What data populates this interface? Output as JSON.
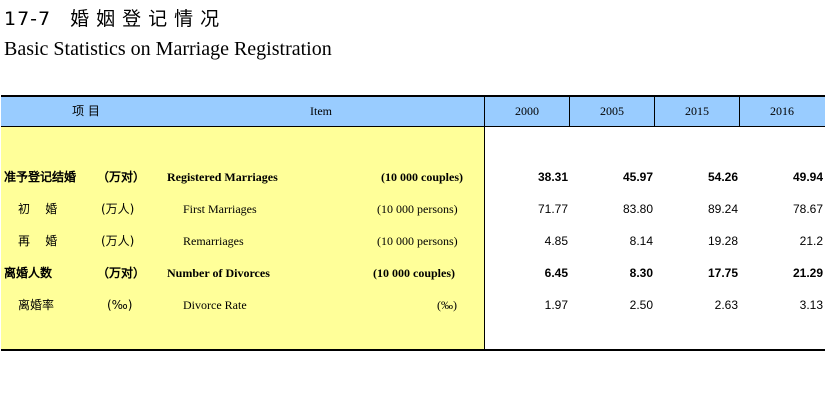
{
  "title": {
    "number": "17-7",
    "cn": "婚姻登记情况",
    "en": "Basic Statistics on Marriage Registration"
  },
  "header": {
    "item_cn": "项  目",
    "item_en": "Item",
    "years": [
      "2000",
      "2005",
      "2015",
      "2016"
    ]
  },
  "rows": [
    {
      "cn": "准予登记结婚",
      "unit_cn": "（万对）",
      "en": "Registered Marriages",
      "unit_en": "(10 000 couples)",
      "bold": true,
      "values": [
        "38.31",
        "45.97",
        "54.26",
        "49.94"
      ]
    },
    {
      "cn": "初    婚",
      "unit_cn": "(万人)",
      "en": "First Marriages",
      "unit_en": "(10 000 persons)",
      "bold": false,
      "values": [
        "71.77",
        "83.80",
        "89.24",
        "78.67"
      ]
    },
    {
      "cn": "再    婚",
      "unit_cn": "(万人)",
      "en": "Remarriages",
      "unit_en": "(10 000 persons)",
      "bold": false,
      "values": [
        "4.85",
        "8.14",
        "19.28",
        "21.2"
      ]
    },
    {
      "cn": "离婚人数",
      "unit_cn": "（万对）",
      "en": "Number of Divorces",
      "unit_en": "(10 000 couples)",
      "bold": true,
      "values": [
        "6.45",
        "8.30",
        "17.75",
        "21.29"
      ]
    },
    {
      "cn": "离婚率",
      "unit_cn": "(‰)",
      "en": "Divorce Rate",
      "unit_en": "(‰)",
      "bold": false,
      "values": [
        "1.97",
        "2.50",
        "2.63",
        "3.13"
      ]
    }
  ],
  "colors": {
    "header_bg": "#99ccff",
    "item_bg": "#ffff99"
  }
}
